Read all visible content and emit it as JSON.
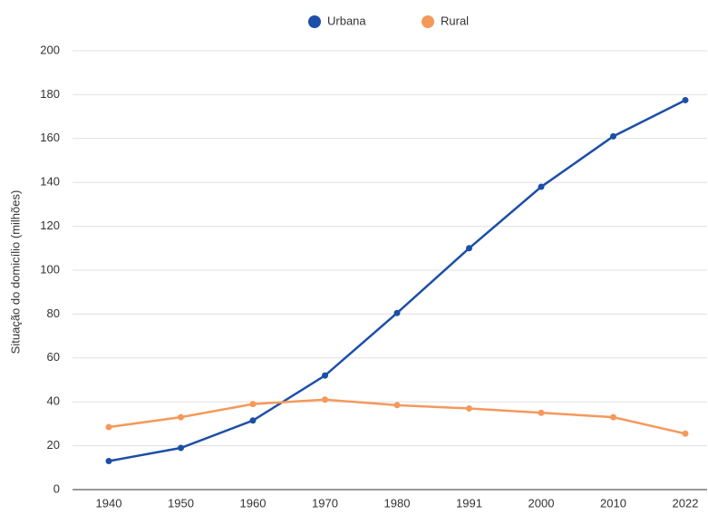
{
  "chart_data": {
    "type": "line",
    "y_label": "Situação do domicílio (milhões)",
    "categories": [
      "1940",
      "1950",
      "1960",
      "1970",
      "1980",
      "1991",
      "2000",
      "2010",
      "2022"
    ],
    "series": [
      {
        "name": "Urbana",
        "color": "#1c4fa7",
        "values": [
          13,
          19,
          31.5,
          52,
          80.5,
          110,
          138,
          161,
          177.5
        ]
      },
      {
        "name": "Rural",
        "color": "#f5995b",
        "values": [
          28.5,
          33,
          39,
          41,
          38.5,
          37,
          35,
          33,
          25.5
        ]
      }
    ],
    "ylim": [
      0,
      200
    ],
    "yticks": [
      0,
      20,
      40,
      60,
      80,
      100,
      120,
      140,
      160,
      180,
      200
    ],
    "grid": true,
    "legend": "top"
  }
}
